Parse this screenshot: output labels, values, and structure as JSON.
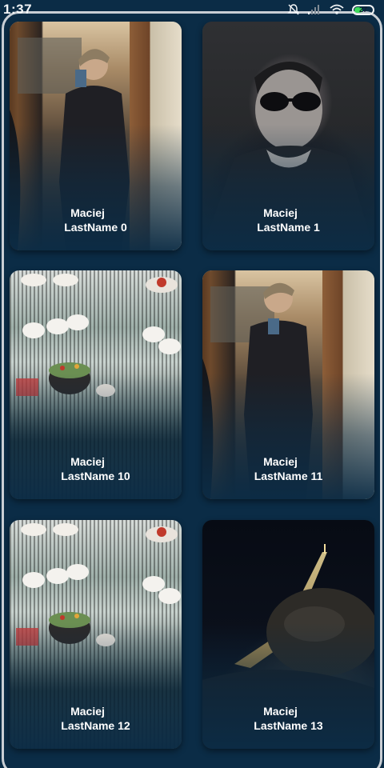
{
  "status_bar": {
    "time": "1:37",
    "battery": "27",
    "icons": [
      "mute-icon",
      "signal-icon",
      "wifi-icon",
      "battery-icon"
    ]
  },
  "cards": [
    {
      "first": "Maciej",
      "last": "LastName  0",
      "photo": "mirror-selfie"
    },
    {
      "first": "Maciej",
      "last": "LastName  1",
      "photo": "sunglasses-portrait"
    },
    {
      "first": "Maciej",
      "last": "LastName  10",
      "photo": "cake-display"
    },
    {
      "first": "Maciej",
      "last": "LastName  11",
      "photo": "mirror-selfie"
    },
    {
      "first": "Maciej",
      "last": "LastName  12",
      "photo": "cake-display"
    },
    {
      "first": "Maciej",
      "last": "LastName  13",
      "photo": "eiffel-night-selfie"
    }
  ],
  "colors": {
    "background": "#0b2c46",
    "card_text": "#ffffff",
    "battery_fill": "#3ddc5c"
  }
}
